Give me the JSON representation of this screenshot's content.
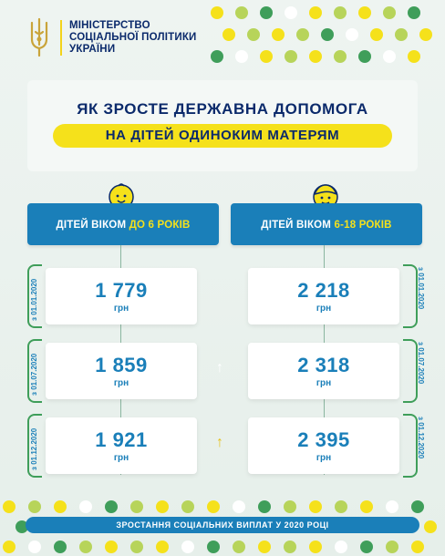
{
  "ministry": {
    "line1": "МІНІСТЕРСТВО",
    "line2": "СОЦІАЛЬНОЇ ПОЛІТИКИ",
    "line3": "УКРАЇНИ",
    "emblem_icon": "trident-icon"
  },
  "title": {
    "line1": "ЯК ЗРОСТЕ ДЕРЖАВНА ДОПОМОГА",
    "line2": "НА ДІТЕЙ ОДИНОКИМ МАТЕРЯМ"
  },
  "left_column": {
    "header_prefix": "ДІТЕЙ ВІКОМ ",
    "header_highlight": "ДО 6 РОКІВ",
    "icon": "baby-face-icon",
    "amounts": [
      "1 779",
      "1 859",
      "1 921"
    ],
    "unit": "грн",
    "dates": [
      "з 01.01.2020",
      "з 01.07.2020",
      "з 01.12.2020"
    ]
  },
  "right_column": {
    "header_prefix": "ДІТЕЙ ВІКОМ ",
    "header_highlight": "6-18 РОКІВ",
    "icon": "child-face-icon",
    "amounts": [
      "2 218",
      "2 318",
      "2 395"
    ],
    "unit": "грн",
    "dates": [
      "з 01.01.2020",
      "з 01.07.2020",
      "з 01.12.2020"
    ]
  },
  "arrows": [
    "up-arrow-white",
    "up-arrow-yellow"
  ],
  "footer": "ЗРОСТАННЯ СОЦІАЛЬНИХ ВИПЛАТ У 2020 РОЦІ",
  "colors": {
    "navy": "#0b2a6b",
    "blue": "#1a7fb9",
    "yellow": "#f5e11b",
    "green": "#3f9e5a",
    "light_green": "#b7d45a"
  }
}
